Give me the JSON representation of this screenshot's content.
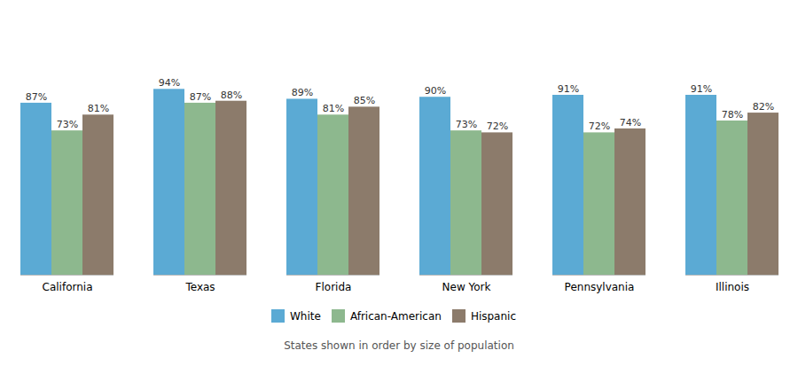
{
  "chart_data": {
    "type": "bar",
    "categories": [
      "California",
      "Texas",
      "Florida",
      "New York",
      "Pennsylvania",
      "Illinois"
    ],
    "series": [
      {
        "name": "White",
        "color": "#5BAAD4",
        "values": [
          87,
          94,
          89,
          90,
          91,
          91
        ],
        "value_labels": [
          "87%",
          "94%",
          "89%",
          "90%",
          "91%",
          "91%"
        ]
      },
      {
        "name": "African-American",
        "color": "#8DB88E",
        "values": [
          73,
          87,
          81,
          73,
          72,
          78
        ],
        "value_labels": [
          "73%",
          "87%",
          "81%",
          "73%",
          "72%",
          "78%"
        ]
      },
      {
        "name": "Hispanic",
        "color": "#8C7B6B",
        "values": [
          81,
          88,
          85,
          72,
          74,
          82
        ],
        "value_labels": [
          "81%",
          "88%",
          "85%",
          "72%",
          "74%",
          "82%"
        ]
      }
    ],
    "annotations": [
      "States shown in order by size of population"
    ],
    "ylim": [
      0,
      130
    ],
    "tick_labels": "x",
    "data_labels": true,
    "legend": "bottom",
    "grid": false
  }
}
